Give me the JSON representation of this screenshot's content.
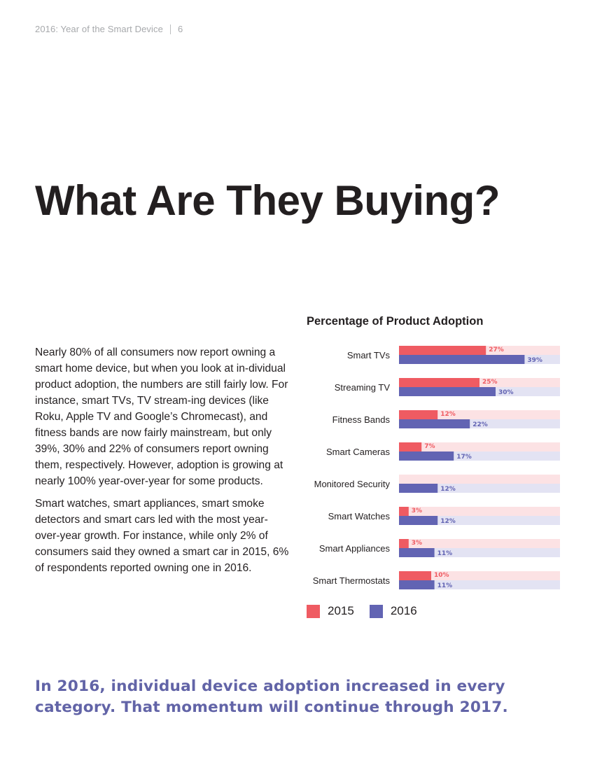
{
  "header": {
    "running_title": "2016: Year of the Smart Device",
    "page_number": "6"
  },
  "title": "What Are They Buying?",
  "body": {
    "paragraphs": [
      "Nearly 80% of all consumers now report owning a smart home device, but when you look at in-dividual product adoption, the numbers are still fairly low. For instance, smart TVs, TV stream-ing devices (like Roku, Apple TV and Google’s Chromecast), and fitness bands are now fairly mainstream, but only 39%, 30% and 22% of consumers report owning them, respectively. However, adoption is growing at nearly 100% year-over-year for some products.",
      "Smart watches, smart appliances, smart smoke detectors and smart cars led with the most year-over-year growth. For instance, while only 2% of consumers said they owned a smart car in 2015, 6% of respondents reported owning one in 2016."
    ]
  },
  "colors": {
    "series_2015": "#ef5b62",
    "series_2016": "#6264b3",
    "track_2015": "#fce2e4",
    "track_2016": "#e3e3f3",
    "pullquote": "#6264a7"
  },
  "chart_data": {
    "type": "bar",
    "orientation": "horizontal",
    "title": "Percentage of Product Adoption",
    "categories": [
      "Smart TVs",
      "Streaming TV",
      "Fitness Bands",
      "Smart Cameras",
      "Monitored Security",
      "Smart Watches",
      "Smart Appliances",
      "Smart Thermostats"
    ],
    "series": [
      {
        "name": "2015",
        "values": [
          27,
          25,
          12,
          7,
          null,
          3,
          3,
          10
        ],
        "labels": [
          "27%",
          "25%",
          "12%",
          "7%",
          "",
          "3%",
          "3%",
          "10%"
        ]
      },
      {
        "name": "2016",
        "values": [
          39,
          30,
          22,
          17,
          12,
          12,
          11,
          11
        ],
        "labels": [
          "39%",
          "30%",
          "22%",
          "17%",
          "12%",
          "12%",
          "11%",
          "11%"
        ]
      }
    ],
    "xlim": [
      0,
      50
    ],
    "legend": "bottom-left",
    "grid": false
  },
  "pullquote": "In 2016, individual device adoption increased in every category. That momentum will continue through 2017."
}
